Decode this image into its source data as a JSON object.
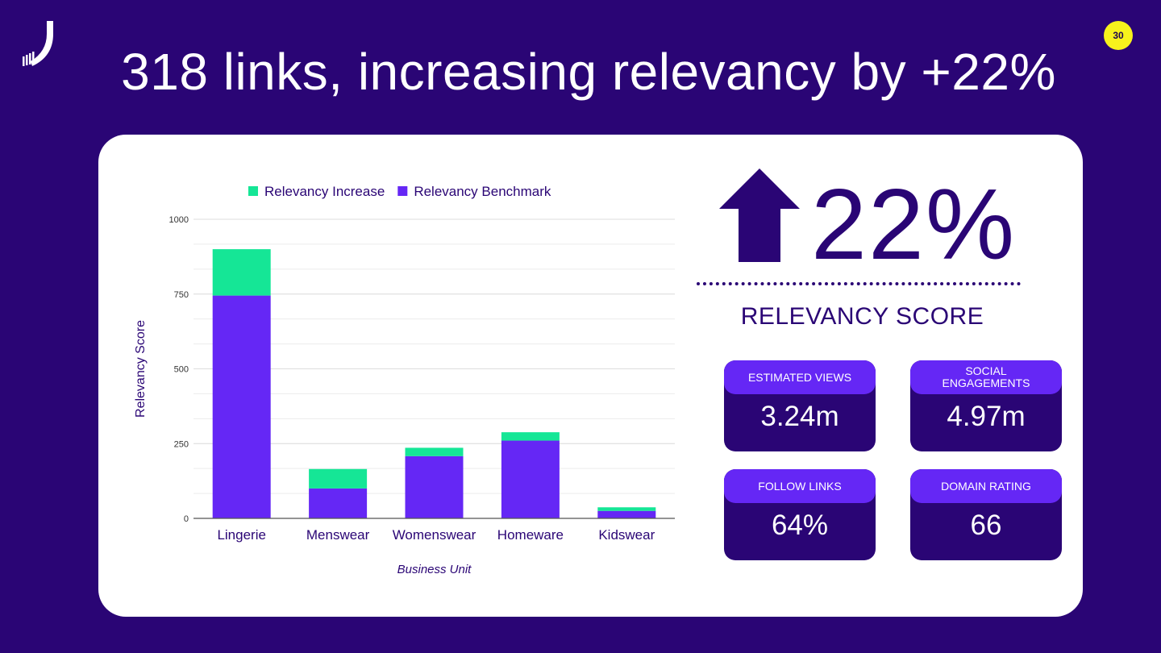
{
  "slide": {
    "title": "318 links, increasing relevancy by +22%",
    "page_number": "30"
  },
  "colors": {
    "background": "#2a0575",
    "increase": "#15e696",
    "benchmark": "#6527f5",
    "badge": "#f7f21c"
  },
  "chart_data": {
    "type": "bar",
    "stacked": true,
    "categories": [
      "Lingerie",
      "Menswear",
      "Womenswear",
      "Homeware",
      "Kidswear"
    ],
    "series": [
      {
        "name": "Relevancy Benchmark",
        "color": "#6527f5",
        "values": [
          745,
          100,
          208,
          260,
          25
        ]
      },
      {
        "name": "Relevancy Increase",
        "color": "#15e696",
        "values": [
          155,
          65,
          28,
          28,
          12
        ]
      }
    ],
    "legend_order": [
      "Relevancy Increase",
      "Relevancy Benchmark"
    ],
    "xlabel": "Business Unit",
    "ylabel": "Relevancy Score",
    "ylim": [
      0,
      1000
    ],
    "yticks": [
      0,
      250,
      500,
      750,
      1000
    ],
    "grid": true,
    "legend_position": "top"
  },
  "headline": {
    "value": "22%",
    "label": "RELEVANCY SCORE",
    "icon": "up-arrow-icon"
  },
  "stats": [
    {
      "label": "ESTIMATED VIEWS",
      "value": "3.24m"
    },
    {
      "label": "SOCIAL ENGAGEMENTS",
      "value": "4.97m"
    },
    {
      "label": "FOLLOW LINKS",
      "value": "64%"
    },
    {
      "label": "DOMAIN RATING",
      "value": "66"
    }
  ]
}
